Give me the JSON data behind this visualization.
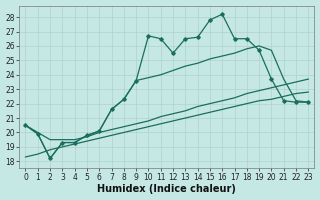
{
  "xlabel": "Humidex (Indice chaleur)",
  "bg_color": "#c5e8e5",
  "grid_color": "#b0d0cc",
  "line_color": "#1a6e5e",
  "xlim": [
    -0.5,
    23.5
  ],
  "ylim": [
    17.5,
    28.8
  ],
  "xticks": [
    0,
    1,
    2,
    3,
    4,
    5,
    6,
    7,
    8,
    9,
    10,
    11,
    12,
    13,
    14,
    15,
    16,
    17,
    18,
    19,
    20,
    21,
    22,
    23
  ],
  "yticks": [
    18,
    19,
    20,
    21,
    22,
    23,
    24,
    25,
    26,
    27,
    28
  ],
  "line1_x": [
    0,
    1,
    2,
    3,
    4,
    5,
    6,
    7,
    8,
    9,
    10,
    11,
    12,
    13,
    14,
    15,
    16,
    17,
    18,
    19,
    20,
    21,
    22,
    23
  ],
  "line1_y": [
    20.5,
    19.9,
    18.2,
    19.3,
    19.3,
    19.8,
    20.1,
    21.6,
    22.3,
    23.6,
    26.7,
    26.5,
    25.5,
    26.5,
    26.6,
    27.8,
    28.2,
    26.5,
    26.5,
    25.7,
    23.7,
    22.2,
    22.1,
    22.1
  ],
  "line1_partial_end": 23,
  "line2_x": [
    0,
    1,
    2,
    3,
    4,
    5,
    6,
    7,
    8,
    9,
    10,
    11,
    12,
    13,
    14,
    15,
    16,
    17,
    18,
    19,
    20,
    21,
    22,
    23
  ],
  "line2_y": [
    20.5,
    19.9,
    18.2,
    19.3,
    19.3,
    19.8,
    20.1,
    21.6,
    22.3,
    23.6,
    23.8,
    24.0,
    24.3,
    24.6,
    24.8,
    25.1,
    25.3,
    25.5,
    25.8,
    26.0,
    25.7,
    23.7,
    22.2,
    22.1
  ],
  "line3_x": [
    0,
    1,
    2,
    3,
    4,
    5,
    6,
    7,
    8,
    9,
    10,
    11,
    12,
    13,
    14,
    15,
    16,
    17,
    18,
    19,
    20,
    21,
    22,
    23
  ],
  "line3_y": [
    18.3,
    18.5,
    18.8,
    19.0,
    19.2,
    19.4,
    19.6,
    19.8,
    20.0,
    20.2,
    20.4,
    20.6,
    20.8,
    21.0,
    21.2,
    21.4,
    21.6,
    21.8,
    22.0,
    22.2,
    22.3,
    22.5,
    22.7,
    22.8
  ],
  "line4_x": [
    0,
    1,
    2,
    3,
    4,
    5,
    6,
    7,
    8,
    9,
    10,
    11,
    12,
    13,
    14,
    15,
    16,
    17,
    18,
    19,
    20,
    21,
    22,
    23
  ],
  "line4_y": [
    20.5,
    20.0,
    19.5,
    19.5,
    19.5,
    19.7,
    20.0,
    20.2,
    20.4,
    20.6,
    20.8,
    21.1,
    21.3,
    21.5,
    21.8,
    22.0,
    22.2,
    22.4,
    22.7,
    22.9,
    23.1,
    23.3,
    23.5,
    23.7
  ],
  "xlabel_fontsize": 7,
  "tick_fontsize": 5.5
}
